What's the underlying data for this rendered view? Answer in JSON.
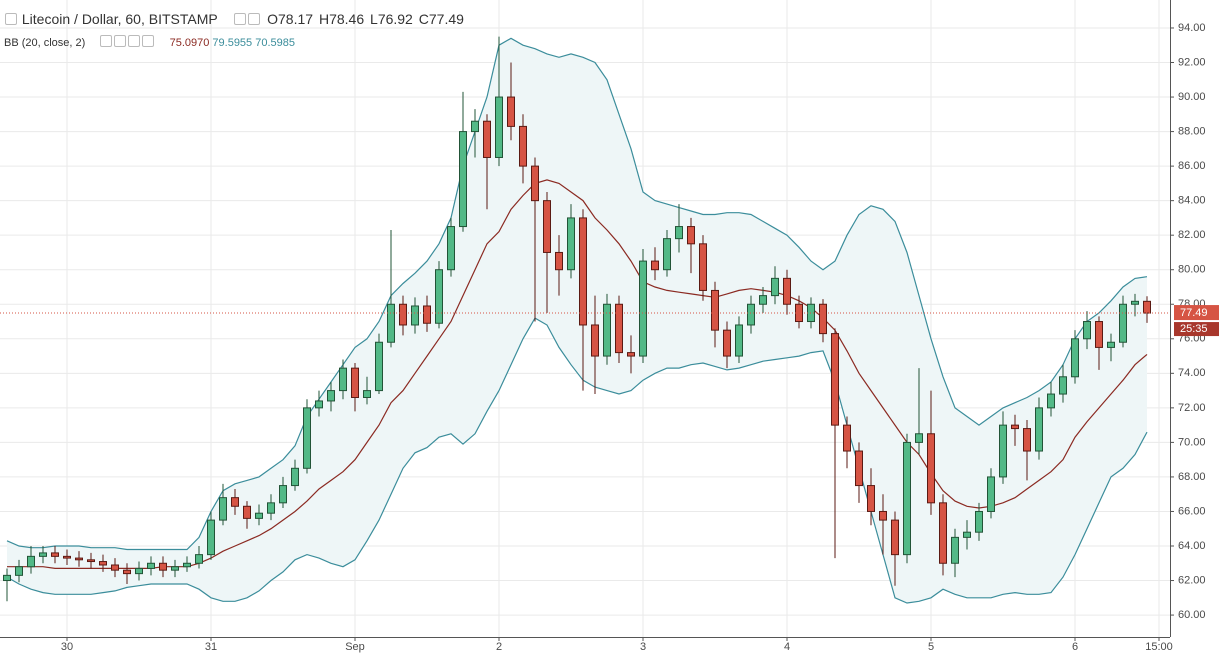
{
  "chart_data": {
    "type": "candlestick",
    "title": "Litecoin / Dollar, 60, BITSTAMP",
    "ohlc_labels": [
      "O",
      "H",
      "L",
      "C"
    ],
    "categories": [
      null,
      null,
      null,
      null,
      null,
      "30",
      null,
      null,
      null,
      null,
      null,
      null,
      null,
      null,
      null,
      null,
      null,
      "31",
      null,
      null,
      null,
      null,
      null,
      null,
      null,
      null,
      null,
      null,
      null,
      "Sep",
      null,
      null,
      null,
      null,
      null,
      null,
      null,
      null,
      null,
      null,
      null,
      "2",
      null,
      null,
      null,
      null,
      null,
      null,
      null,
      null,
      null,
      null,
      null,
      "3",
      null,
      null,
      null,
      null,
      null,
      null,
      null,
      null,
      null,
      null,
      null,
      "4",
      null,
      null,
      null,
      null,
      null,
      null,
      null,
      null,
      null,
      null,
      null,
      "5",
      null,
      null,
      null,
      null,
      null,
      null,
      null,
      null,
      null,
      null,
      null,
      "6",
      null,
      null,
      null,
      null,
      null,
      null,
      "15:00"
    ],
    "open": [
      62.0,
      62.3,
      62.8,
      63.4,
      63.6,
      63.4,
      63.3,
      63.2,
      63.1,
      62.9,
      62.6,
      62.4,
      62.7,
      63.0,
      62.6,
      62.8,
      63.0,
      63.5,
      65.5,
      66.8,
      66.3,
      65.6,
      65.9,
      66.5,
      67.5,
      68.5,
      72.0,
      72.4,
      73.0,
      74.3,
      72.6,
      73.0,
      75.8,
      78.0,
      76.8,
      77.9,
      76.9,
      80.0,
      82.5,
      88.0,
      88.6,
      86.5,
      90.0,
      88.3,
      86.0,
      84.0,
      81.0,
      80.0,
      83.0,
      76.8,
      75.0,
      78.0,
      75.2,
      75.0,
      80.5,
      80.0,
      81.8,
      82.5,
      81.5,
      78.8,
      76.5,
      75.0,
      76.8,
      78.0,
      78.5,
      79.5,
      78.0,
      77.0,
      78.0,
      76.3,
      71.0,
      69.5,
      67.5,
      66.0,
      65.5,
      63.5,
      70.0,
      70.5,
      66.5,
      63.0,
      64.5,
      64.8,
      66.0,
      68.0,
      71.0,
      70.8,
      69.5,
      72.0,
      72.8,
      73.8,
      76.0,
      77.0,
      75.5,
      75.8,
      78.0,
      78.17,
      null
    ],
    "high": [
      62.7,
      63.2,
      64.0,
      64.0,
      64.0,
      63.8,
      63.7,
      63.6,
      63.5,
      63.3,
      63.0,
      63.1,
      63.4,
      63.4,
      63.2,
      63.4,
      64.0,
      66.0,
      67.6,
      67.3,
      66.6,
      66.4,
      67.0,
      68.0,
      69.0,
      72.5,
      73.0,
      73.5,
      74.8,
      74.6,
      73.8,
      76.3,
      82.3,
      78.5,
      78.4,
      78.5,
      80.5,
      83.0,
      90.3,
      89.3,
      89.0,
      93.5,
      92.0,
      89.0,
      86.5,
      84.5,
      82.0,
      83.8,
      83.5,
      78.5,
      78.6,
      78.5,
      76.2,
      81.2,
      81.3,
      82.3,
      83.8,
      83.0,
      82.0,
      79.3,
      77.0,
      77.3,
      78.5,
      79.0,
      80.2,
      80.0,
      78.5,
      78.4,
      78.3,
      76.6,
      71.5,
      70.0,
      68.5,
      67.0,
      66.0,
      70.5,
      74.3,
      73.0,
      67.0,
      65.0,
      65.5,
      66.5,
      68.5,
      71.8,
      71.6,
      71.3,
      72.6,
      73.5,
      74.5,
      76.5,
      77.6,
      77.3,
      76.3,
      78.5,
      78.6,
      78.46,
      null
    ],
    "low": [
      60.8,
      61.9,
      62.4,
      63.0,
      63.0,
      62.9,
      62.8,
      62.7,
      62.5,
      62.2,
      61.8,
      62.0,
      62.3,
      62.2,
      62.2,
      62.5,
      62.7,
      63.2,
      65.2,
      65.8,
      65.0,
      65.2,
      65.5,
      66.2,
      67.2,
      68.2,
      71.5,
      71.8,
      72.5,
      71.8,
      72.2,
      72.8,
      75.5,
      76.2,
      76.3,
      76.4,
      76.6,
      79.6,
      82.2,
      86.5,
      83.5,
      86.0,
      87.5,
      85.0,
      77.0,
      77.5,
      78.5,
      79.5,
      73.0,
      72.8,
      74.5,
      74.6,
      74.0,
      74.6,
      79.4,
      79.6,
      81.0,
      79.8,
      78.2,
      75.5,
      74.3,
      74.6,
      76.3,
      77.5,
      78.0,
      77.4,
      76.6,
      76.6,
      75.8,
      63.3,
      68.5,
      66.5,
      65.2,
      63.5,
      61.7,
      63.0,
      69.3,
      65.8,
      62.3,
      62.2,
      63.8,
      64.3,
      65.6,
      67.6,
      69.8,
      67.8,
      69.0,
      71.5,
      72.3,
      73.4,
      75.4,
      74.2,
      74.7,
      75.5,
      77.3,
      76.92,
      null
    ],
    "close": [
      62.3,
      62.8,
      63.4,
      63.6,
      63.4,
      63.3,
      63.2,
      63.1,
      62.9,
      62.6,
      62.4,
      62.7,
      63.0,
      62.6,
      62.8,
      63.0,
      63.5,
      65.5,
      66.8,
      66.3,
      65.6,
      65.9,
      66.5,
      67.5,
      68.5,
      72.0,
      72.4,
      73.0,
      74.3,
      72.6,
      73.0,
      75.8,
      78.0,
      76.8,
      77.9,
      76.9,
      80.0,
      82.5,
      88.0,
      88.6,
      86.5,
      90.0,
      88.3,
      86.0,
      84.0,
      81.0,
      80.0,
      83.0,
      76.8,
      75.0,
      78.0,
      75.2,
      75.0,
      80.5,
      80.0,
      81.8,
      82.5,
      81.5,
      78.8,
      76.5,
      75.0,
      76.8,
      78.0,
      78.5,
      79.5,
      78.0,
      77.0,
      78.0,
      76.3,
      71.0,
      69.5,
      67.5,
      66.0,
      65.5,
      63.5,
      70.0,
      70.5,
      66.5,
      63.0,
      64.5,
      64.8,
      66.0,
      68.0,
      71.0,
      70.8,
      69.5,
      72.0,
      72.8,
      73.8,
      76.0,
      77.0,
      75.5,
      75.8,
      78.0,
      78.17,
      77.49,
      null
    ],
    "up_color": "#53b987",
    "down_color": "#d65444",
    "last_price_color": "#d65444",
    "countdown": "25:35",
    "ylim": [
      58.73,
      95.62
    ],
    "yticks": [
      {
        "value": 60,
        "label": "60.00"
      },
      {
        "value": 62,
        "label": "62.00"
      },
      {
        "value": 64,
        "label": "64.00"
      },
      {
        "value": 66,
        "label": "66.00"
      },
      {
        "value": 68,
        "label": "68.00"
      },
      {
        "value": 70,
        "label": "70.00"
      },
      {
        "value": 72,
        "label": "72.00"
      },
      {
        "value": 74,
        "label": "74.00"
      },
      {
        "value": 76,
        "label": "76.00"
      },
      {
        "value": 78,
        "label": "78.00"
      },
      {
        "value": 80,
        "label": "80.00"
      },
      {
        "value": 82,
        "label": "82.00"
      },
      {
        "value": 84,
        "label": "84.00"
      },
      {
        "value": 86,
        "label": "86.00"
      },
      {
        "value": 88,
        "label": "88.00"
      },
      {
        "value": 90,
        "label": "90.00"
      },
      {
        "value": 92,
        "label": "92.00"
      },
      {
        "value": 94,
        "label": "94.00"
      }
    ],
    "grid": true,
    "indicator": {
      "name": "BB (20, close, 2)",
      "fill": "#eef6f7",
      "series": [
        {
          "color": "#8b2a22",
          "last_label": "75.0970",
          "values": [
            62.8,
            62.8,
            62.8,
            62.8,
            62.7,
            62.7,
            62.7,
            62.7,
            62.7,
            62.7,
            62.7,
            62.7,
            62.7,
            62.8,
            62.8,
            62.8,
            63.0,
            63.3,
            63.7,
            64.0,
            64.3,
            64.6,
            65.0,
            65.5,
            66.0,
            66.6,
            67.3,
            67.8,
            68.3,
            69.0,
            70.0,
            71.0,
            72.3,
            73.0,
            74.0,
            75.0,
            76.0,
            77.0,
            78.5,
            80.0,
            81.5,
            82.2,
            83.5,
            84.3,
            85.0,
            85.2,
            85.0,
            84.5,
            84.0,
            83.0,
            82.3,
            81.5,
            80.5,
            79.3,
            79.0,
            78.8,
            78.7,
            78.6,
            78.5,
            78.4,
            78.6,
            78.8,
            78.9,
            78.8,
            78.7,
            78.5,
            78.2,
            77.8,
            77.2,
            76.5,
            75.3,
            74.0,
            73.0,
            72.0,
            71.0,
            70.0,
            69.3,
            68.2,
            67.2,
            66.6,
            66.3,
            66.2,
            66.3,
            66.5,
            66.8,
            67.3,
            67.8,
            68.3,
            69.0,
            70.3,
            71.2,
            72.0,
            72.8,
            73.6,
            74.5,
            75.097,
            null
          ]
        },
        {
          "color": "#3b8d9b",
          "last_label": "79.5955",
          "values": [
            64.3,
            64.0,
            63.9,
            63.9,
            64.0,
            64.0,
            64.0,
            63.9,
            63.9,
            63.9,
            63.8,
            63.8,
            63.8,
            63.8,
            63.8,
            63.8,
            64.5,
            66.0,
            67.2,
            67.6,
            67.8,
            68.0,
            68.5,
            69.0,
            69.8,
            71.5,
            72.5,
            73.5,
            74.5,
            75.5,
            76.0,
            77.0,
            78.5,
            79.2,
            79.8,
            80.5,
            81.5,
            83.0,
            86.0,
            88.0,
            90.0,
            93.0,
            93.4,
            93.0,
            92.8,
            92.5,
            92.3,
            92.5,
            92.3,
            92.0,
            91.0,
            89.0,
            87.0,
            84.5,
            84.0,
            83.8,
            83.6,
            83.4,
            83.2,
            83.2,
            83.3,
            83.3,
            83.2,
            82.8,
            82.4,
            82.0,
            81.3,
            80.5,
            80.0,
            80.5,
            82.0,
            83.2,
            83.7,
            83.5,
            82.8,
            81.0,
            78.5,
            76.0,
            73.8,
            72.0,
            71.5,
            71.0,
            71.5,
            72.0,
            72.3,
            72.6,
            73.0,
            73.5,
            74.5,
            76.0,
            77.0,
            77.5,
            78.2,
            79.0,
            79.5,
            79.5955,
            null
          ]
        },
        {
          "color": "#3b8d9b",
          "last_label": "70.5985",
          "values": [
            62.2,
            61.8,
            61.5,
            61.3,
            61.2,
            61.2,
            61.2,
            61.2,
            61.3,
            61.4,
            61.6,
            61.7,
            61.8,
            61.8,
            61.8,
            61.8,
            61.5,
            61.0,
            60.8,
            60.8,
            61.0,
            61.4,
            62.0,
            62.5,
            63.2,
            63.5,
            63.3,
            63.0,
            62.8,
            63.2,
            64.3,
            65.5,
            67.0,
            68.5,
            69.4,
            69.7,
            70.3,
            70.5,
            69.9,
            70.5,
            71.8,
            73.0,
            74.5,
            76.0,
            77.2,
            76.8,
            75.5,
            74.5,
            73.6,
            73.2,
            73.0,
            72.8,
            73.0,
            73.6,
            74.0,
            74.3,
            74.3,
            74.5,
            74.6,
            74.4,
            74.2,
            74.3,
            74.5,
            74.7,
            74.8,
            74.9,
            75.0,
            75.2,
            75.3,
            73.5,
            71.0,
            68.5,
            66.0,
            63.5,
            61.0,
            60.7,
            60.8,
            61.0,
            61.5,
            61.2,
            61.0,
            61.0,
            61.0,
            61.2,
            61.3,
            61.2,
            61.2,
            61.3,
            62.2,
            63.5,
            65.0,
            66.5,
            68.0,
            68.5,
            69.3,
            70.5985,
            null
          ]
        }
      ]
    }
  }
}
